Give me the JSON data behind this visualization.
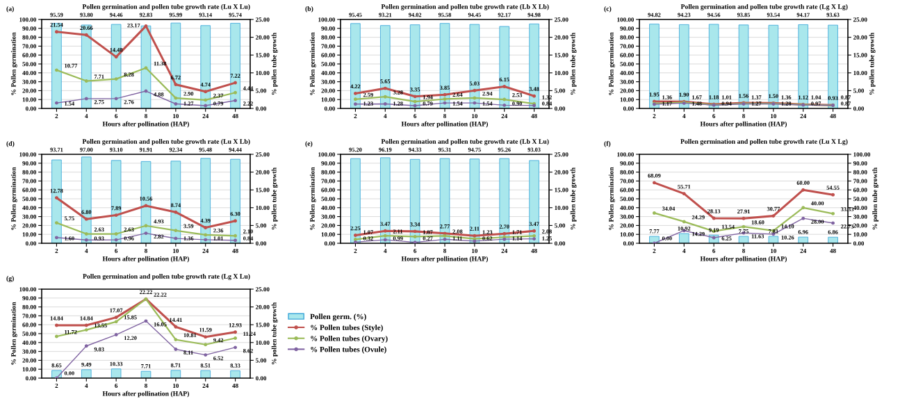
{
  "chart_data": [
    {
      "type": "bar",
      "title": "Pollen germination and pollen tube growth rate (Lu X Lu)",
      "annotations": [
        "(a)"
      ],
      "xlabel": "Hours after pollination (HAP)",
      "ylabel": "% Pollen germination",
      "y2label": "% pollen tube growth",
      "categories": [
        "2",
        "4",
        "6",
        "8",
        "10",
        "24",
        "48"
      ],
      "series": [
        {
          "color": "#a9e7ec",
          "values": [
            95.59,
            93.8,
            94.46,
            92.83,
            95.99,
            93.14,
            95.74
          ],
          "value_labels": [
            "95.59",
            "93.80",
            "94.46",
            "92.83",
            "95.99",
            "93.14",
            "95.74"
          ]
        },
        {
          "type": "line",
          "axis": "y2",
          "color": "#c0504d",
          "values": [
            21.54,
            20.66,
            14.48,
            23.17,
            6.72,
            4.74,
            7.22
          ],
          "value_labels": [
            "21.54",
            "20.66",
            "14.48",
            "23.17",
            "6.72",
            "4.74",
            "7.22"
          ]
        },
        {
          "type": "line",
          "axis": "y2",
          "color": "#9bbb59",
          "values": [
            10.77,
            7.71,
            8.28,
            11.38,
            2.9,
            2.37,
            4.44
          ],
          "value_labels": [
            "10.77",
            "7.71",
            "8.28",
            "11.38",
            "2.90",
            "2.37",
            "4.44"
          ]
        },
        {
          "type": "line",
          "axis": "y2",
          "color": "#8064a2",
          "values": [
            1.54,
            2.75,
            2.76,
            4.88,
            1.27,
            0.79,
            2.22
          ],
          "value_labels": [
            "1.54",
            "2.75",
            "2.76",
            "4.88",
            "1.27",
            "0.79",
            "2.22"
          ]
        }
      ],
      "ylim": [
        0,
        100
      ],
      "yticks": [
        {
          "value": 0,
          "label": "0.00"
        },
        {
          "value": 10,
          "label": "10.00"
        },
        {
          "value": 20,
          "label": "20.00"
        },
        {
          "value": 30,
          "label": "30.00"
        },
        {
          "value": 40,
          "label": "40.00"
        },
        {
          "value": 50,
          "label": "50.00"
        },
        {
          "value": 60,
          "label": "60.00"
        },
        {
          "value": 70,
          "label": "70.00"
        },
        {
          "value": 80,
          "label": "80.00"
        },
        {
          "value": 90,
          "label": "90.00"
        },
        {
          "value": 100,
          "label": "100.00"
        }
      ],
      "y2lim": [
        0,
        25
      ],
      "y2ticks": [
        {
          "value": 0,
          "label": "0.00"
        },
        {
          "value": 5,
          "label": "5.00"
        },
        {
          "value": 10,
          "label": "10.00"
        },
        {
          "value": 15,
          "label": "15.00"
        },
        {
          "value": 20,
          "label": "20.00"
        },
        {
          "value": 25,
          "label": "25.00"
        }
      ],
      "grid": "y",
      "marker": "circle",
      "line_style": "solid"
    },
    {
      "type": "bar",
      "title": "Pollen germination and pollen tube growth rate (Lb X Lb)",
      "annotations": [
        "(b)"
      ],
      "xlabel": "Hours after pollination (HAP)",
      "ylabel": "% Pollen germination",
      "y2label": "% pollen tube growth",
      "categories": [
        "2",
        "4",
        "6",
        "8",
        "10",
        "24",
        "48"
      ],
      "series": [
        {
          "color": "#a9e7ec",
          "values": [
            95.45,
            93.21,
            94.02,
            95.58,
            94.45,
            92.17,
            94.98
          ],
          "value_labels": [
            "95.45",
            "93.21",
            "94.02",
            "95.58",
            "94.45",
            "92.17",
            "94.98"
          ]
        },
        {
          "type": "line",
          "axis": "y2",
          "color": "#c0504d",
          "values": [
            4.22,
            5.65,
            3.35,
            3.85,
            5.03,
            6.15,
            3.48
          ],
          "value_labels": [
            "4.22",
            "5.65",
            "3.35",
            "3.85",
            "5.03",
            "6.15",
            "3.48"
          ]
        },
        {
          "type": "line",
          "axis": "y2",
          "color": "#9bbb59",
          "values": [
            2.59,
            3.28,
            1.94,
            2.64,
            2.94,
            2.53,
            1.32
          ],
          "value_labels": [
            "2.59",
            "3.28",
            "1.94",
            "2.64",
            "2.94",
            "2.53",
            "1.32"
          ]
        },
        {
          "type": "line",
          "axis": "y2",
          "color": "#8064a2",
          "values": [
            1.23,
            1.28,
            0.79,
            1.54,
            1.54,
            0.9,
            0.84
          ],
          "value_labels": [
            "1.23",
            "1.28",
            "0.79",
            "1.54",
            "1.54",
            "0.90",
            "0.84"
          ]
        }
      ],
      "ylim": [
        0,
        100
      ],
      "yticks": [
        {
          "value": 0,
          "label": "0.00"
        },
        {
          "value": 10,
          "label": "10.00"
        },
        {
          "value": 20,
          "label": "20.00"
        },
        {
          "value": 30,
          "label": "30.00"
        },
        {
          "value": 40,
          "label": "40.00"
        },
        {
          "value": 50,
          "label": "50.00"
        },
        {
          "value": 60,
          "label": "60.00"
        },
        {
          "value": 70,
          "label": "70.00"
        },
        {
          "value": 80,
          "label": "80.00"
        },
        {
          "value": 90,
          "label": "90.00"
        },
        {
          "value": 100,
          "label": "100.00"
        }
      ],
      "y2lim": [
        0,
        25
      ],
      "y2ticks": [
        {
          "value": 0,
          "label": "0.00"
        },
        {
          "value": 5,
          "label": "5.00"
        },
        {
          "value": 10,
          "label": "10.00"
        },
        {
          "value": 15,
          "label": "15.00"
        },
        {
          "value": 20,
          "label": "20.00"
        },
        {
          "value": 25,
          "label": "25.00"
        }
      ],
      "grid": "y",
      "marker": "circle",
      "line_style": "solid"
    },
    {
      "type": "bar",
      "title": "Pollen germination and pollen tube growth rate (Lg X Lg)",
      "annotations": [
        "(c)"
      ],
      "xlabel": "Hours after pollination (HAP)",
      "ylabel": "% Pollen germination",
      "y2label": "% pollen tube growth",
      "categories": [
        "2",
        "4",
        "6",
        "8",
        "10",
        "24",
        "48"
      ],
      "series": [
        {
          "color": "#a9e7ec",
          "values": [
            94.82,
            94.23,
            94.56,
            93.85,
            93.54,
            94.17,
            93.63
          ],
          "value_labels": [
            "94.82",
            "94.23",
            "94.56",
            "93.85",
            "93.54",
            "94.17",
            "93.63"
          ]
        },
        {
          "type": "line",
          "axis": "y2",
          "color": "#c0504d",
          "values": [
            1.95,
            1.9,
            1.18,
            1.56,
            1.5,
            1.12,
            0.93
          ],
          "value_labels": [
            "1.95",
            "1.90",
            "1.18",
            "1.56",
            "1.50",
            "1.12",
            "0.93"
          ]
        },
        {
          "type": "line",
          "axis": "y2",
          "color": "#9bbb59",
          "values": [
            1.36,
            1.67,
            1.01,
            1.37,
            1.36,
            1.04,
            0.87
          ],
          "value_labels": [
            "1.36",
            "1.67",
            "1.01",
            "1.37",
            "1.36",
            "1.04",
            "0.87"
          ]
        },
        {
          "type": "line",
          "axis": "y2",
          "color": "#8064a2",
          "values": [
            1.17,
            1.48,
            0.94,
            1.27,
            1.28,
            0.97,
            0.87
          ],
          "value_labels": [
            "1.17",
            "1.48",
            "0.94",
            "1.27",
            "1.28",
            "0.97",
            "0.87"
          ]
        }
      ],
      "ylim": [
        0,
        100
      ],
      "yticks": [
        {
          "value": 0,
          "label": "0.00"
        },
        {
          "value": 10,
          "label": "10.00"
        },
        {
          "value": 20,
          "label": "20.00"
        },
        {
          "value": 30,
          "label": "30.00"
        },
        {
          "value": 40,
          "label": "40.00"
        },
        {
          "value": 50,
          "label": "50.00"
        },
        {
          "value": 60,
          "label": "60.00"
        },
        {
          "value": 70,
          "label": "70.00"
        },
        {
          "value": 80,
          "label": "80.00"
        },
        {
          "value": 90,
          "label": "90.00"
        },
        {
          "value": 100,
          "label": "100.00"
        }
      ],
      "y2lim": [
        0,
        25
      ],
      "y2ticks": [
        {
          "value": 0,
          "label": "0.00"
        },
        {
          "value": 5,
          "label": "5.00"
        },
        {
          "value": 10,
          "label": "10.00"
        },
        {
          "value": 15,
          "label": "15.00"
        },
        {
          "value": 20,
          "label": "20.00"
        },
        {
          "value": 25,
          "label": "25.00"
        }
      ],
      "grid": "y",
      "marker": "circle",
      "line_style": "solid"
    },
    {
      "type": "bar",
      "title": "Pollen germination and pollen tube growth rate (Lu X Lb)",
      "annotations": [
        "(d)"
      ],
      "xlabel": "Hours after pollination (HAP)",
      "ylabel": "% Pollen germination",
      "y2label": "% pollen tube growth",
      "categories": [
        "2",
        "4",
        "6",
        "8",
        "10",
        "24",
        "48"
      ],
      "series": [
        {
          "color": "#a9e7ec",
          "values": [
            93.71,
            97.0,
            93.1,
            91.91,
            92.34,
            95.48,
            94.44
          ],
          "value_labels": [
            "93.71",
            "97.00",
            "93.10",
            "91.91",
            "92.34",
            "95.48",
            "94.44"
          ]
        },
        {
          "type": "line",
          "axis": "y2",
          "color": "#c0504d",
          "values": [
            12.78,
            6.8,
            7.89,
            10.56,
            8.74,
            4.39,
            6.3
          ],
          "value_labels": [
            "12.78",
            "6.80",
            "7.89",
            "10.56",
            "8.74",
            "4.39",
            "6.30"
          ]
        },
        {
          "type": "line",
          "axis": "y2",
          "color": "#9bbb59",
          "values": [
            5.75,
            2.63,
            2.63,
            4.93,
            3.59,
            2.36,
            2.1
          ],
          "value_labels": [
            "5.75",
            "2.63",
            "2.63",
            "4.93",
            "3.59",
            "2.36",
            "2.10"
          ]
        },
        {
          "type": "line",
          "axis": "y2",
          "color": "#8064a2",
          "values": [
            1.6,
            0.93,
            0.96,
            2.82,
            1.36,
            1.01,
            0.84
          ],
          "value_labels": [
            "1.60",
            "0.93",
            "0.96",
            "2.82",
            "1.36",
            "1.01",
            "0.84"
          ]
        }
      ],
      "ylim": [
        0,
        100
      ],
      "yticks": [
        {
          "value": 0,
          "label": "0.00"
        },
        {
          "value": 10,
          "label": "10.00"
        },
        {
          "value": 20,
          "label": "20.00"
        },
        {
          "value": 30,
          "label": "30.00"
        },
        {
          "value": 40,
          "label": "40.00"
        },
        {
          "value": 50,
          "label": "50.00"
        },
        {
          "value": 60,
          "label": "60.00"
        },
        {
          "value": 70,
          "label": "70.00"
        },
        {
          "value": 80,
          "label": "80.00"
        },
        {
          "value": 90,
          "label": "90.00"
        },
        {
          "value": 100,
          "label": "100.00"
        }
      ],
      "y2lim": [
        0,
        25
      ],
      "y2ticks": [
        {
          "value": 0,
          "label": "0.00"
        },
        {
          "value": 5,
          "label": "5.00"
        },
        {
          "value": 10,
          "label": "10.00"
        },
        {
          "value": 15,
          "label": "15.00"
        },
        {
          "value": 20,
          "label": "20.00"
        },
        {
          "value": 25,
          "label": "25.00"
        }
      ],
      "grid": "y",
      "marker": "circle",
      "line_style": "solid"
    },
    {
      "type": "bar",
      "title": "Pollen germination and pollen tube growth rate (Lb X Lu)",
      "annotations": [
        "(e)"
      ],
      "xlabel": "Hours after pollination (HAP)",
      "ylabel": "% Pollen germination",
      "y2label": "% pollen tube growth",
      "categories": [
        "2",
        "4",
        "6",
        "8",
        "10",
        "24",
        "48"
      ],
      "series": [
        {
          "color": "#a9e7ec",
          "values": [
            95.2,
            96.19,
            94.33,
            95.31,
            94.75,
            95.26,
            93.03
          ],
          "value_labels": [
            "95.20",
            "96.19",
            "94.33",
            "95.31",
            "94.75",
            "95.26",
            "93.03"
          ]
        },
        {
          "type": "line",
          "axis": "y2",
          "color": "#c0504d",
          "values": [
            2.25,
            3.47,
            3.34,
            2.77,
            2.11,
            2.7,
            3.47
          ],
          "value_labels": [
            "2.25",
            "3.47",
            "3.34",
            "2.77",
            "2.11",
            "2.70",
            "3.47"
          ]
        },
        {
          "type": "line",
          "axis": "y2",
          "color": "#9bbb59",
          "values": [
            1.07,
            2.11,
            1.87,
            2.08,
            1.23,
            1.71,
            2.08
          ],
          "value_labels": [
            "1.07",
            "2.11",
            "1.87",
            "2.08",
            "1.23",
            "1.71",
            "2.08"
          ]
        },
        {
          "type": "line",
          "axis": "y2",
          "color": "#8064a2",
          "values": [
            0.32,
            0.99,
            0.27,
            1.11,
            0.62,
            1.14,
            1.25
          ],
          "value_labels": [
            "0.32",
            "0.99",
            "0.27",
            "1.11",
            "0.62",
            "1.14",
            "1.25"
          ]
        }
      ],
      "ylim": [
        0,
        100
      ],
      "yticks": [
        {
          "value": 0,
          "label": "0.00"
        },
        {
          "value": 10,
          "label": "10.00"
        },
        {
          "value": 20,
          "label": "20.00"
        },
        {
          "value": 30,
          "label": "30.00"
        },
        {
          "value": 40,
          "label": "40.00"
        },
        {
          "value": 50,
          "label": "50.00"
        },
        {
          "value": 60,
          "label": "60.00"
        },
        {
          "value": 70,
          "label": "70.00"
        },
        {
          "value": 80,
          "label": "80.00"
        },
        {
          "value": 90,
          "label": "90.00"
        },
        {
          "value": 100,
          "label": "100.00"
        }
      ],
      "y2lim": [
        0,
        25
      ],
      "y2ticks": [
        {
          "value": 0,
          "label": "0.00"
        },
        {
          "value": 5,
          "label": "5.00"
        },
        {
          "value": 10,
          "label": "10.00"
        },
        {
          "value": 15,
          "label": "15.00"
        },
        {
          "value": 20,
          "label": "20.00"
        },
        {
          "value": 25,
          "label": "25.00"
        }
      ],
      "grid": "y",
      "marker": "circle",
      "line_style": "solid"
    },
    {
      "type": "bar",
      "title": "Pollen germination and pollen tube growth rate (Lu X Lg)",
      "annotations": [
        "(f)"
      ],
      "xlabel": "Hours after pollination (HAP)",
      "ylabel": "% Pollen germination",
      "y2label": "% pollen tube growth",
      "categories": [
        "2",
        "4",
        "6",
        "8",
        "10",
        "24",
        "48"
      ],
      "series": [
        {
          "color": "#a9e7ec",
          "values": [
            7.77,
            10.92,
            9.19,
            7.75,
            7.81,
            6.96,
            6.86
          ],
          "value_labels": [
            "7.77",
            "10.92",
            "9.19",
            "7.75",
            "7.81",
            "6.96",
            "6.86"
          ]
        },
        {
          "type": "line",
          "axis": "y2",
          "color": "#c0504d",
          "values": [
            68.09,
            55.71,
            28.13,
            27.91,
            30.77,
            60.0,
            54.55
          ],
          "value_labels": [
            "68.09",
            "55.71",
            "28.13",
            "27.91",
            "30.77",
            "60.00",
            "54.55"
          ]
        },
        {
          "type": "line",
          "axis": "y2",
          "color": "#9bbb59",
          "values": [
            34.04,
            24.29,
            13.54,
            18.6,
            14.1,
            40.0,
            33.33
          ],
          "value_labels": [
            "34.04",
            "24.29",
            "13.54",
            "18.60",
            "14.10",
            "40.00",
            "33.33"
          ]
        },
        {
          "type": "line",
          "axis": "y2",
          "color": "#8064a2",
          "values": [
            0.0,
            14.29,
            6.25,
            11.63,
            10.26,
            28.0,
            22.73
          ],
          "value_labels": [
            "0.00",
            "14.29",
            "6.25",
            "11.63",
            "10.26",
            "28.00",
            "22.73"
          ]
        }
      ],
      "ylim": [
        0,
        100
      ],
      "yticks": [
        {
          "value": 0,
          "label": "0.00"
        },
        {
          "value": 10,
          "label": "10.00"
        },
        {
          "value": 20,
          "label": "20.00"
        },
        {
          "value": 30,
          "label": "30.00"
        },
        {
          "value": 40,
          "label": "40.00"
        },
        {
          "value": 50,
          "label": "50.00"
        },
        {
          "value": 60,
          "label": "60.00"
        },
        {
          "value": 70,
          "label": "70.00"
        },
        {
          "value": 80,
          "label": "80.00"
        },
        {
          "value": 90,
          "label": "90.00"
        },
        {
          "value": 100,
          "label": "100.00"
        }
      ],
      "y2lim": [
        0,
        100
      ],
      "y2ticks": [
        {
          "value": 0,
          "label": "0.00"
        },
        {
          "value": 10,
          "label": "10.00"
        },
        {
          "value": 20,
          "label": "20.00"
        },
        {
          "value": 30,
          "label": "30.00"
        },
        {
          "value": 40,
          "label": "40.00"
        },
        {
          "value": 50,
          "label": "50.00"
        },
        {
          "value": 60,
          "label": "60.00"
        },
        {
          "value": 70,
          "label": "70.00"
        },
        {
          "value": 80,
          "label": "80.00"
        },
        {
          "value": 90,
          "label": "90.00"
        },
        {
          "value": 100,
          "label": "100.00"
        }
      ],
      "grid": "y",
      "marker": "circle",
      "line_style": "solid"
    },
    {
      "type": "bar",
      "title": "Pollen germination and pollen tube growth rate (Lg X Lu)",
      "annotations": [
        "(g)"
      ],
      "xlabel": "Hours after pollination (HAP)",
      "ylabel": "% Pollen germination",
      "y2label": "% pollen tube growth",
      "categories": [
        "2",
        "4",
        "6",
        "8",
        "10",
        "24",
        "48"
      ],
      "series": [
        {
          "name": "Pollen germ. (%)",
          "color": "#a9e7ec",
          "values": [
            8.65,
            9.49,
            10.33,
            7.71,
            8.71,
            8.51,
            8.33
          ],
          "value_labels": [
            "8.65",
            "9.49",
            "10.33",
            "7.71",
            "8.71",
            "8.51",
            "8.33"
          ]
        },
        {
          "type": "line",
          "axis": "y2",
          "name": "% Pollen tubes (Style)",
          "color": "#c0504d",
          "values": [
            14.84,
            14.84,
            17.07,
            22.22,
            14.41,
            11.59,
            12.93
          ],
          "value_labels": [
            "14.84",
            "14.84",
            "17.07",
            "22.22",
            "14.41",
            "11.59",
            "12.93"
          ]
        },
        {
          "type": "line",
          "axis": "y2",
          "name": "% Pollen tubes (Ovary)",
          "color": "#9bbb59",
          "values": [
            11.72,
            13.55,
            15.85,
            22.22,
            10.81,
            9.42,
            11.24
          ],
          "value_labels": [
            "11.72",
            "13.55",
            "15.85",
            "22.22",
            "10.81",
            "9.42",
            "11.24"
          ]
        },
        {
          "type": "line",
          "axis": "y2",
          "name": "% Pollen tubes (Ovule)",
          "color": "#8064a2",
          "values": [
            0.0,
            9.03,
            12.2,
            16.05,
            8.11,
            6.52,
            8.62
          ],
          "value_labels": [
            "0.00",
            "9.03",
            "12.20",
            "16.05",
            "8.11",
            "6.52",
            "8.62"
          ]
        }
      ],
      "ylim": [
        0,
        100
      ],
      "yticks": [
        {
          "value": 0,
          "label": "0.00"
        },
        {
          "value": 10,
          "label": "10.00"
        },
        {
          "value": 20,
          "label": "20.00"
        },
        {
          "value": 30,
          "label": "30.00"
        },
        {
          "value": 40,
          "label": "40.00"
        },
        {
          "value": 50,
          "label": "50.00"
        },
        {
          "value": 60,
          "label": "60.00"
        },
        {
          "value": 70,
          "label": "70.00"
        },
        {
          "value": 80,
          "label": "80.00"
        },
        {
          "value": 90,
          "label": "90.00"
        },
        {
          "value": 100,
          "label": "100.00"
        }
      ],
      "y2lim": [
        0,
        25
      ],
      "y2ticks": [
        {
          "value": 0,
          "label": "0.00"
        },
        {
          "value": 5,
          "label": "5.00"
        },
        {
          "value": 10,
          "label": "10.00"
        },
        {
          "value": 15,
          "label": "15.00"
        },
        {
          "value": 20,
          "label": "20.00"
        },
        {
          "value": 25,
          "label": "25.00"
        }
      ],
      "grid": "y",
      "marker": "circle",
      "line_style": "solid",
      "legend": "right"
    }
  ]
}
